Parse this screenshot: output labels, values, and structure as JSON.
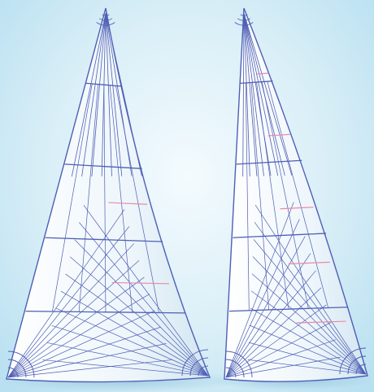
{
  "image": {
    "subject": "two-sail-panel-layouts",
    "sails": [
      {
        "name": "sail-left",
        "style": "radial-crosscut"
      },
      {
        "name": "sail-right",
        "style": "radial-crosscut"
      }
    ],
    "colors": {
      "background": "#c9e8f5",
      "sail_fill": "#eef6fb",
      "seam_line": "#4e5fb5",
      "draft_stripe": "#e88aa8",
      "shadow": "#9bc6dc"
    }
  }
}
